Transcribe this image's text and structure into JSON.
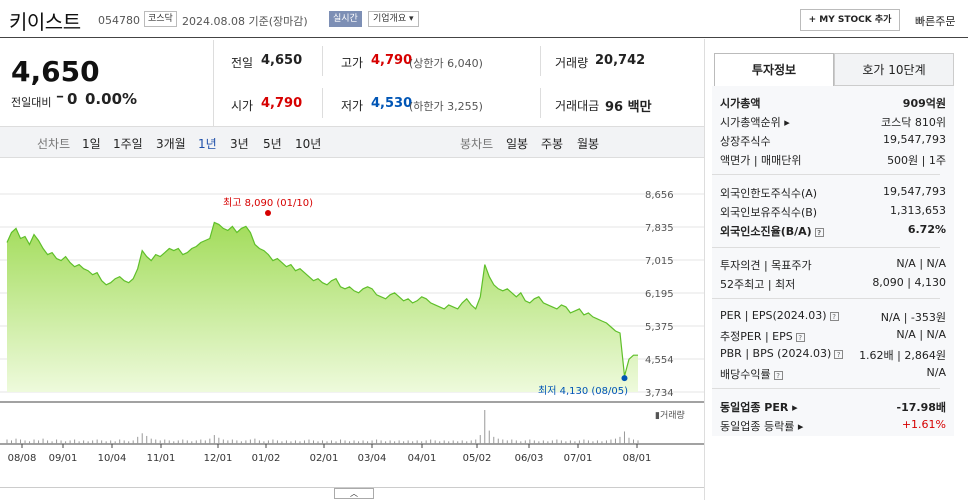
{
  "header": {
    "name": "키이스트",
    "code": "054780",
    "market": "코스닥",
    "date": "2024.08.08",
    "basis": "기준(장마감)",
    "live": "실시간",
    "corp": "기업개요",
    "mystock": "+ MY STOCK 추가",
    "quick_order": "빠른주문"
  },
  "price": {
    "current": "4,650",
    "change_label": "전일대비",
    "change_arrow": "━",
    "change_value": "0",
    "change_pct": "0.00%"
  },
  "summary": {
    "prev_label": "전일",
    "prev": "4,650",
    "high_label": "고가",
    "high": "4,790",
    "upper_limit": "(상한가 6,040)",
    "volume_label": "거래량",
    "volume": "20,742",
    "open_label": "시가",
    "open": "4,790",
    "low_label": "저가",
    "low": "4,530",
    "lower_limit": "(하한가 3,255)",
    "amount_label": "거래대금",
    "amount": "96 백만"
  },
  "periods": {
    "line_label": "선차트",
    "items": [
      "1일",
      "1주일",
      "3개월",
      "1년",
      "3년",
      "5년",
      "10년"
    ],
    "active": "1년",
    "candle_label": "봉차트",
    "candle_items": [
      "일봉",
      "주봉",
      "월봉"
    ]
  },
  "chart_data": {
    "type": "area",
    "y_ticks": [
      "8,656",
      "7,835",
      "7,015",
      "6,195",
      "5,375",
      "4,554",
      "3,734"
    ],
    "x_labels": [
      "08/08",
      "09/01",
      "10/04",
      "11/01",
      "12/01",
      "01/02",
      "02/01",
      "03/04",
      "04/01",
      "05/02",
      "06/03",
      "07/01",
      "08/01"
    ],
    "ylim": [
      3734,
      8656
    ],
    "high_label": "최고 8,090 (01/10)",
    "low_label": "최저 4,130 (08/05)",
    "volume_legend": "▮거래량",
    "prices": [
      7450,
      7700,
      7800,
      7550,
      7600,
      7400,
      7650,
      7500,
      7300,
      7150,
      7200,
      7050,
      7000,
      7100,
      6950,
      6850,
      6900,
      6800,
      6750,
      6650,
      6700,
      6500,
      6400,
      6450,
      6550,
      6600,
      6500,
      6450,
      6550,
      6800,
      7250,
      7100,
      7000,
      7150,
      7100,
      7200,
      7300,
      7250,
      7300,
      7150,
      7200,
      7300,
      7350,
      7450,
      7500,
      7550,
      7950,
      7900,
      7800,
      7750,
      7850,
      7700,
      7800,
      7850,
      7700,
      7400,
      7300,
      7250,
      7150,
      7000,
      7050,
      6950,
      6850,
      6900,
      6750,
      6800,
      6700,
      6600,
      6500,
      6550,
      6450,
      6400,
      6500,
      6550,
      6350,
      6300,
      6350,
      6250,
      6200,
      6300,
      6350,
      6300,
      6150,
      6100,
      6050,
      6150,
      6200,
      6100,
      6000,
      6050,
      5950,
      6000,
      6100,
      6050,
      5950,
      5900,
      5850,
      5800,
      5900,
      5850,
      5800,
      5950,
      6050,
      5900,
      5800,
      6100,
      6900,
      6600,
      6400,
      6300,
      6250,
      6300,
      6200,
      6100,
      6200,
      6000,
      5950,
      6050,
      6100,
      5950,
      5900,
      5850,
      5800,
      5900,
      5850,
      5700,
      5750,
      5800,
      5650,
      5700,
      5600,
      5550,
      5500,
      5450,
      5350,
      5250,
      5200,
      4130,
      4550,
      4650,
      4650
    ],
    "volumes": [
      5,
      4,
      6,
      5,
      4,
      3,
      5,
      4,
      6,
      4,
      3,
      5,
      4,
      3,
      4,
      5,
      3,
      4,
      3,
      4,
      5,
      4,
      3,
      4,
      3,
      5,
      4,
      3,
      4,
      8,
      12,
      9,
      6,
      5,
      4,
      5,
      4,
      3,
      4,
      5,
      4,
      3,
      4,
      5,
      4,
      6,
      10,
      7,
      5,
      4,
      5,
      4,
      3,
      4,
      5,
      6,
      4,
      3,
      4,
      5,
      4,
      3,
      4,
      3,
      4,
      3,
      4,
      5,
      4,
      3,
      4,
      3,
      4,
      3,
      5,
      4,
      3,
      4,
      3,
      4,
      3,
      4,
      5,
      4,
      3,
      4,
      3,
      4,
      3,
      4,
      3,
      4,
      3,
      4,
      5,
      4,
      3,
      4,
      3,
      4,
      3,
      4,
      3,
      4,
      5,
      10,
      38,
      15,
      8,
      6,
      5,
      4,
      5,
      4,
      3,
      4,
      5,
      4,
      3,
      4,
      3,
      4,
      5,
      4,
      3,
      4,
      3,
      4,
      5,
      4,
      3,
      4,
      3,
      4,
      5,
      6,
      8,
      14,
      7,
      5,
      4
    ]
  },
  "right": {
    "tab_invest": "투자정보",
    "tab_hoga": "호가 10단계",
    "rows1": [
      {
        "k": "시가총액",
        "v": "909억원",
        "bold": true
      },
      {
        "k": "시가총액순위 ▸",
        "v": "코스닥 810위"
      },
      {
        "k": "상장주식수",
        "v": "19,547,793"
      },
      {
        "k": "액면가 | 매매단위",
        "v": "500원 | 1주"
      }
    ],
    "rows2": [
      {
        "k": "외국인한도주식수(A)",
        "v": "19,547,793"
      },
      {
        "k": "외국인보유주식수(B)",
        "v": "1,313,653"
      },
      {
        "k": "외국인소진율(B/A)",
        "v": "6.72%",
        "bold": true
      }
    ],
    "rows3": [
      {
        "k": "투자의견 | 목표주가",
        "v": "N/A | N/A"
      },
      {
        "k": "52주최고 | 최저",
        "v": "8,090 | 4,130"
      }
    ],
    "rows4": [
      {
        "k": "PER | EPS(2024.03)",
        "v": "N/A | -353원"
      },
      {
        "k": "추정PER | EPS",
        "v": "N/A | N/A"
      },
      {
        "k": "PBR | BPS (2024.03)",
        "v": "1.62배 | 2,864원"
      },
      {
        "k": "배당수익률",
        "v": "N/A"
      }
    ],
    "industry_per_label": "동일업종 PER ▸",
    "industry_per": "-17.98배",
    "industry_rate_label": "동일업종 등락률 ▸",
    "industry_rate": "+1.61%"
  },
  "colors": {
    "up": "#d60000",
    "down": "#0055b5",
    "area": "#a6e05a",
    "line": "#5fbf2a"
  }
}
